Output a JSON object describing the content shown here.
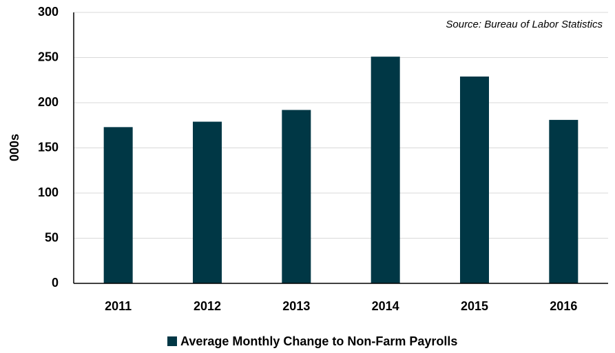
{
  "chart_data": {
    "type": "bar",
    "annotation": "Source: Bureau of Labor Statistics",
    "ylabel": "000s",
    "categories": [
      "2011",
      "2012",
      "2013",
      "2014",
      "2015",
      "2016"
    ],
    "series": [
      {
        "name": "Average Monthly Change to Non-Farm Payrolls",
        "color": "#003745",
        "values": [
          173,
          179,
          192,
          251,
          229,
          181
        ]
      }
    ],
    "ylim": [
      0,
      300
    ],
    "yticks": [
      0,
      50,
      100,
      150,
      200,
      250,
      300
    ],
    "grid": true,
    "legend": "bottom"
  }
}
